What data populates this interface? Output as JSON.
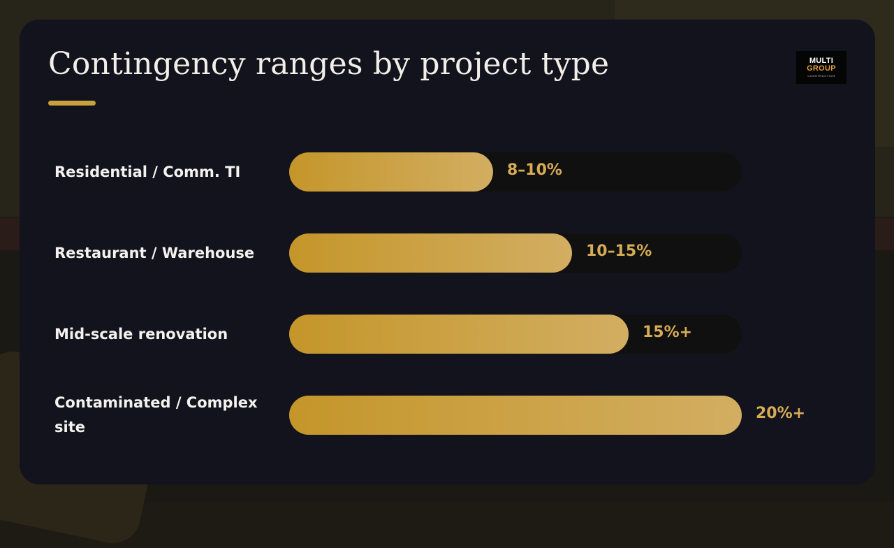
{
  "slide": {
    "title": "Contingency ranges by project type",
    "accent_color": "#c9a13d",
    "logo": {
      "line1": "MULTI",
      "line2": "GROUP",
      "line3": "CONSTRUCTION"
    }
  },
  "chart_data": {
    "type": "bar",
    "orientation": "horizontal",
    "title": "Contingency ranges by project type",
    "categories": [
      "Residential / Comm. TI",
      "Restaurant / Warehouse",
      "Mid-scale renovation",
      "Contaminated / Complex site"
    ],
    "value_labels": [
      "8–10%",
      "10–15%",
      "15%+",
      "20%+"
    ],
    "values": [
      0.45,
      0.625,
      0.75,
      1.0
    ],
    "xlim": [
      0,
      1
    ],
    "grid": false,
    "legend": "none",
    "bar_color_start": "#c4962a",
    "bar_color_end": "#d3ae62",
    "track_color": "#101010"
  }
}
